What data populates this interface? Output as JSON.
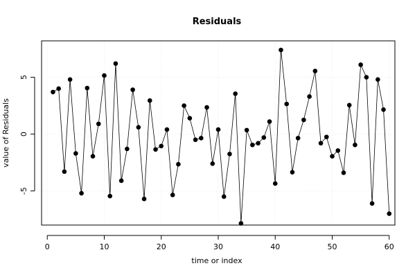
{
  "chart_data": {
    "type": "line",
    "title": "Residuals",
    "xlabel": "time or index",
    "ylabel": "value of Residuals",
    "xlim": [
      -1,
      61
    ],
    "ylim": [
      -8.0,
      8.2
    ],
    "x_ticks": [
      0,
      10,
      20,
      30,
      40,
      50,
      60
    ],
    "x_tick_labels": [
      "0",
      "10",
      "20",
      "30",
      "40",
      "50",
      "60"
    ],
    "y_ticks": [
      -5,
      0,
      5
    ],
    "y_tick_labels": [
      "-5",
      "0",
      "5"
    ],
    "grid": true,
    "series": [
      {
        "x": [
          1,
          2,
          3,
          4,
          5,
          6,
          7,
          8,
          9,
          10,
          11,
          12,
          13,
          14,
          15,
          16,
          17,
          18,
          19,
          20,
          21,
          22,
          23,
          24,
          25,
          26,
          27,
          28,
          29,
          30,
          31,
          32,
          33,
          34,
          35,
          36,
          37,
          38,
          39,
          40,
          41,
          42,
          43,
          44,
          45,
          46,
          47,
          48,
          49,
          50,
          51,
          52,
          53,
          54,
          55,
          56,
          57,
          58,
          59,
          60
        ],
        "values": [
          3.7,
          4.0,
          -3.3,
          4.8,
          -1.7,
          -5.2,
          4.05,
          -1.95,
          0.9,
          5.15,
          -5.45,
          6.2,
          -4.1,
          -1.3,
          3.9,
          0.6,
          -5.7,
          2.95,
          -1.35,
          -1.05,
          0.4,
          -5.35,
          -2.65,
          2.5,
          1.4,
          -0.5,
          -0.35,
          2.35,
          -2.6,
          0.4,
          -5.5,
          -1.75,
          3.55,
          -7.85,
          0.35,
          -0.95,
          -0.8,
          -0.3,
          1.1,
          -4.35,
          7.4,
          2.65,
          -3.35,
          -0.35,
          1.25,
          3.3,
          5.55,
          -0.8,
          -0.25,
          -1.95,
          -1.45,
          -3.4,
          2.55,
          -0.95,
          6.1,
          5.0,
          -6.1,
          4.8,
          2.15,
          -7.0
        ]
      }
    ]
  }
}
